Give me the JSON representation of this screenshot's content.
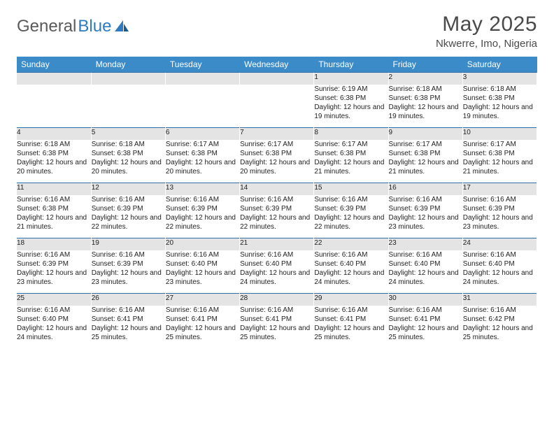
{
  "brand": {
    "part1": "General",
    "part2": "Blue"
  },
  "title": "May 2025",
  "location": "Nkwerre, Imo, Nigeria",
  "colors": {
    "header_bg": "#3b8bc9",
    "header_border": "#2f6fa8",
    "daynum_bg": "#e4e4e4",
    "text": "#333333",
    "brand_gray": "#5a5a5a",
    "brand_blue": "#2f7bbf"
  },
  "daysOfWeek": [
    "Sunday",
    "Monday",
    "Tuesday",
    "Wednesday",
    "Thursday",
    "Friday",
    "Saturday"
  ],
  "weeks": [
    [
      null,
      null,
      null,
      null,
      {
        "n": "1",
        "sunrise": "6:19 AM",
        "sunset": "6:38 PM",
        "daylight": "12 hours and 19 minutes."
      },
      {
        "n": "2",
        "sunrise": "6:18 AM",
        "sunset": "6:38 PM",
        "daylight": "12 hours and 19 minutes."
      },
      {
        "n": "3",
        "sunrise": "6:18 AM",
        "sunset": "6:38 PM",
        "daylight": "12 hours and 19 minutes."
      }
    ],
    [
      {
        "n": "4",
        "sunrise": "6:18 AM",
        "sunset": "6:38 PM",
        "daylight": "12 hours and 20 minutes."
      },
      {
        "n": "5",
        "sunrise": "6:18 AM",
        "sunset": "6:38 PM",
        "daylight": "12 hours and 20 minutes."
      },
      {
        "n": "6",
        "sunrise": "6:17 AM",
        "sunset": "6:38 PM",
        "daylight": "12 hours and 20 minutes."
      },
      {
        "n": "7",
        "sunrise": "6:17 AM",
        "sunset": "6:38 PM",
        "daylight": "12 hours and 20 minutes."
      },
      {
        "n": "8",
        "sunrise": "6:17 AM",
        "sunset": "6:38 PM",
        "daylight": "12 hours and 21 minutes."
      },
      {
        "n": "9",
        "sunrise": "6:17 AM",
        "sunset": "6:38 PM",
        "daylight": "12 hours and 21 minutes."
      },
      {
        "n": "10",
        "sunrise": "6:17 AM",
        "sunset": "6:38 PM",
        "daylight": "12 hours and 21 minutes."
      }
    ],
    [
      {
        "n": "11",
        "sunrise": "6:16 AM",
        "sunset": "6:38 PM",
        "daylight": "12 hours and 21 minutes."
      },
      {
        "n": "12",
        "sunrise": "6:16 AM",
        "sunset": "6:39 PM",
        "daylight": "12 hours and 22 minutes."
      },
      {
        "n": "13",
        "sunrise": "6:16 AM",
        "sunset": "6:39 PM",
        "daylight": "12 hours and 22 minutes."
      },
      {
        "n": "14",
        "sunrise": "6:16 AM",
        "sunset": "6:39 PM",
        "daylight": "12 hours and 22 minutes."
      },
      {
        "n": "15",
        "sunrise": "6:16 AM",
        "sunset": "6:39 PM",
        "daylight": "12 hours and 22 minutes."
      },
      {
        "n": "16",
        "sunrise": "6:16 AM",
        "sunset": "6:39 PM",
        "daylight": "12 hours and 23 minutes."
      },
      {
        "n": "17",
        "sunrise": "6:16 AM",
        "sunset": "6:39 PM",
        "daylight": "12 hours and 23 minutes."
      }
    ],
    [
      {
        "n": "18",
        "sunrise": "6:16 AM",
        "sunset": "6:39 PM",
        "daylight": "12 hours and 23 minutes."
      },
      {
        "n": "19",
        "sunrise": "6:16 AM",
        "sunset": "6:39 PM",
        "daylight": "12 hours and 23 minutes."
      },
      {
        "n": "20",
        "sunrise": "6:16 AM",
        "sunset": "6:40 PM",
        "daylight": "12 hours and 23 minutes."
      },
      {
        "n": "21",
        "sunrise": "6:16 AM",
        "sunset": "6:40 PM",
        "daylight": "12 hours and 24 minutes."
      },
      {
        "n": "22",
        "sunrise": "6:16 AM",
        "sunset": "6:40 PM",
        "daylight": "12 hours and 24 minutes."
      },
      {
        "n": "23",
        "sunrise": "6:16 AM",
        "sunset": "6:40 PM",
        "daylight": "12 hours and 24 minutes."
      },
      {
        "n": "24",
        "sunrise": "6:16 AM",
        "sunset": "6:40 PM",
        "daylight": "12 hours and 24 minutes."
      }
    ],
    [
      {
        "n": "25",
        "sunrise": "6:16 AM",
        "sunset": "6:40 PM",
        "daylight": "12 hours and 24 minutes."
      },
      {
        "n": "26",
        "sunrise": "6:16 AM",
        "sunset": "6:41 PM",
        "daylight": "12 hours and 25 minutes."
      },
      {
        "n": "27",
        "sunrise": "6:16 AM",
        "sunset": "6:41 PM",
        "daylight": "12 hours and 25 minutes."
      },
      {
        "n": "28",
        "sunrise": "6:16 AM",
        "sunset": "6:41 PM",
        "daylight": "12 hours and 25 minutes."
      },
      {
        "n": "29",
        "sunrise": "6:16 AM",
        "sunset": "6:41 PM",
        "daylight": "12 hours and 25 minutes."
      },
      {
        "n": "30",
        "sunrise": "6:16 AM",
        "sunset": "6:41 PM",
        "daylight": "12 hours and 25 minutes."
      },
      {
        "n": "31",
        "sunrise": "6:16 AM",
        "sunset": "6:42 PM",
        "daylight": "12 hours and 25 minutes."
      }
    ]
  ],
  "labels": {
    "sunrise": "Sunrise: ",
    "sunset": "Sunset: ",
    "daylight": "Daylight: "
  }
}
